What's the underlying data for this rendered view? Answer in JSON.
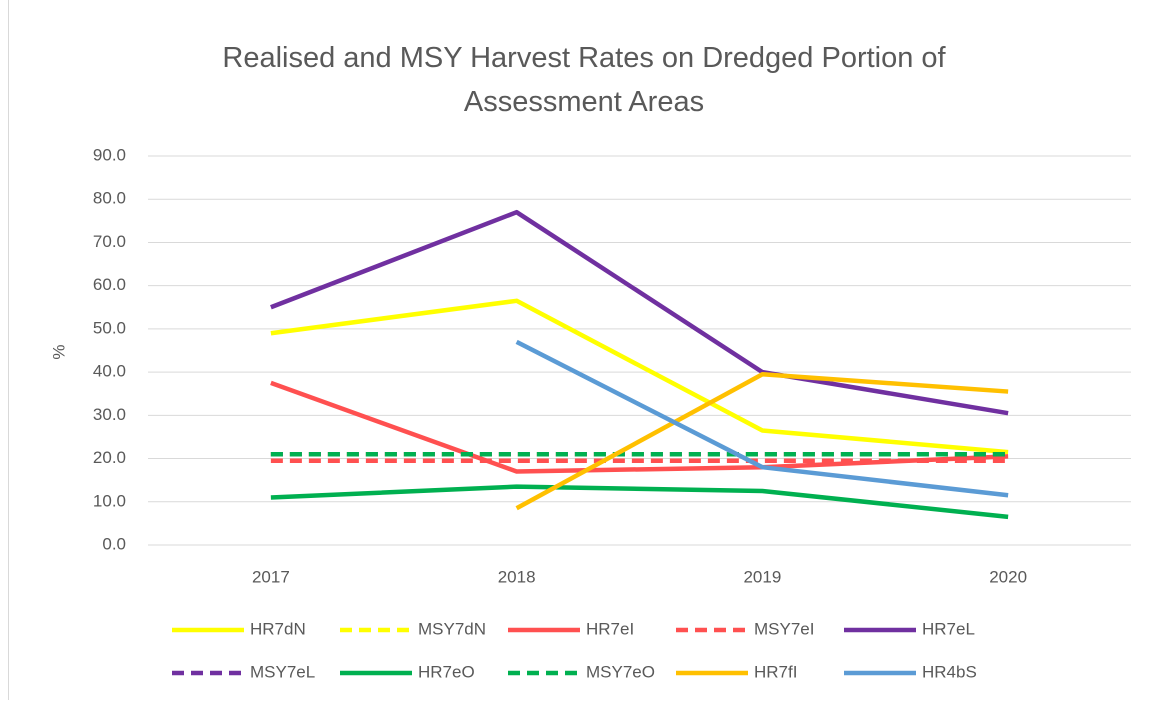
{
  "chart_data": {
    "type": "line",
    "title": "Realised and MSY Harvest Rates on Dredged Portion of Assessment Areas",
    "y_label": "%",
    "categories": [
      "2017",
      "2018",
      "2019",
      "2020"
    ],
    "series": [
      {
        "name": "HR7dN",
        "color": "#ffff00",
        "dashed": false,
        "values": [
          49,
          56.5,
          26.5,
          21.5
        ]
      },
      {
        "name": "MSY7dN",
        "color": "#ffff00",
        "dashed": true,
        "values": [
          21,
          21,
          21,
          21
        ]
      },
      {
        "name": "HR7eI",
        "color": "#ff5050",
        "dashed": false,
        "values": [
          37.5,
          17,
          18,
          20.5
        ]
      },
      {
        "name": "MSY7eI",
        "color": "#ff5050",
        "dashed": true,
        "values": [
          19.5,
          19.5,
          19.5,
          19.5
        ]
      },
      {
        "name": "HR7eL",
        "color": "#7030a0",
        "dashed": false,
        "values": [
          55,
          77,
          40,
          30.5
        ]
      },
      {
        "name": "MSY7eL",
        "color": "#7030a0",
        "dashed": true,
        "values": [
          21,
          21,
          21,
          21
        ]
      },
      {
        "name": "HR7eO",
        "color": "#00b050",
        "dashed": false,
        "values": [
          11,
          13.5,
          12.5,
          6.5
        ]
      },
      {
        "name": "MSY7eO",
        "color": "#00b050",
        "dashed": true,
        "values": [
          21,
          21,
          21,
          21
        ]
      },
      {
        "name": "HR7fI",
        "color": "#ffc000",
        "dashed": false,
        "values": [
          null,
          8.5,
          39.5,
          35.5
        ]
      },
      {
        "name": "HR4bS",
        "color": "#5b9bd5",
        "dashed": false,
        "values": [
          null,
          47,
          18,
          11.5
        ]
      }
    ],
    "ylim": [
      0,
      90
    ],
    "yticks": [
      {
        "value": 0,
        "label": "0.0"
      },
      {
        "value": 10,
        "label": "10.0"
      },
      {
        "value": 20,
        "label": "20.0"
      },
      {
        "value": 30,
        "label": "30.0"
      },
      {
        "value": 40,
        "label": "40.0"
      },
      {
        "value": 50,
        "label": "50.0"
      },
      {
        "value": 60,
        "label": "60.0"
      },
      {
        "value": 70,
        "label": "70.0"
      },
      {
        "value": 80,
        "label": "80.0"
      },
      {
        "value": 90,
        "label": "90.0"
      }
    ],
    "grid": true,
    "legend": "bottom"
  }
}
